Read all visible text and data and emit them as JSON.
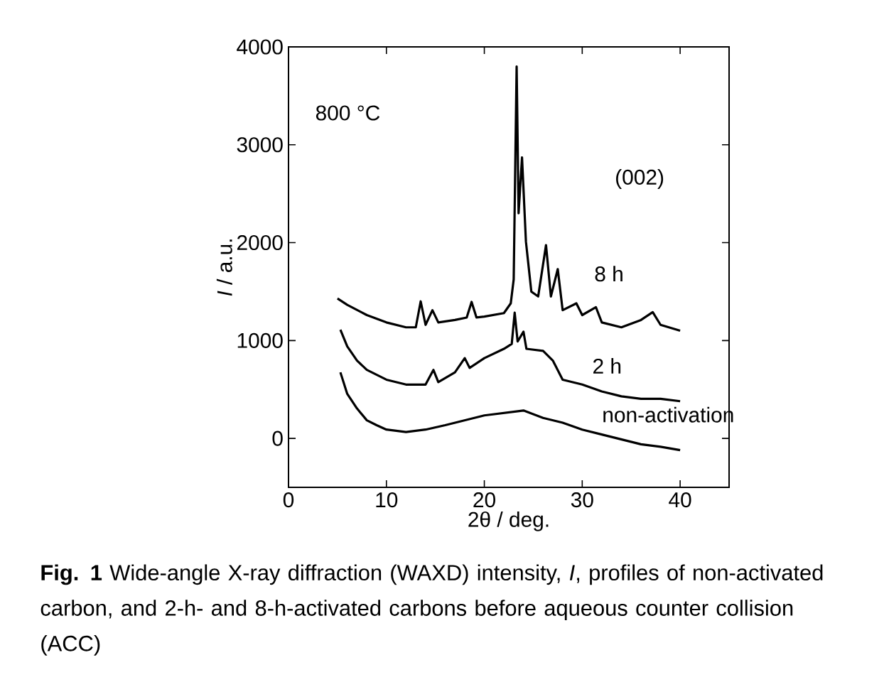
{
  "chart_data": {
    "type": "line",
    "xlabel": "2θ / deg.",
    "ylabel": "*I* / a.u.",
    "xlim": [
      0,
      45
    ],
    "ylim": [
      -500,
      4000
    ],
    "xticks": [
      0,
      10,
      20,
      30,
      40
    ],
    "yticks": [
      0,
      1000,
      2000,
      3000,
      4000
    ],
    "grid": false,
    "legend": false,
    "marker": "none",
    "line_style": "solid",
    "annotations": [
      "800 °C",
      "(002)",
      "**Fig. 1** Wide-angle X-ray diffraction (WAXD) intensity, *I*, profiles of non-activated carbon, and 2-h- and 8-h-activated carbons before aqueous counter collision (ACC)"
    ],
    "series": [
      {
        "name": "8 h",
        "color": "#000000",
        "x": [
          5,
          6,
          8,
          10,
          12,
          13,
          13.5,
          14,
          14.7,
          15.3,
          17,
          18.2,
          18.7,
          19.2,
          20,
          22,
          22.7,
          23,
          23.3,
          23.5,
          23.85,
          24.25,
          24.8,
          25.5,
          26.3,
          26.8,
          27.5,
          28,
          29.4,
          30,
          31.4,
          32,
          34,
          36,
          37.2,
          38,
          40
        ],
        "values": [
          1430,
          1365,
          1260,
          1185,
          1135,
          1135,
          1400,
          1160,
          1310,
          1185,
          1210,
          1235,
          1395,
          1235,
          1245,
          1280,
          1380,
          1625,
          3800,
          2300,
          2870,
          2010,
          1500,
          1450,
          1975,
          1450,
          1730,
          1310,
          1380,
          1260,
          1340,
          1185,
          1135,
          1210,
          1290,
          1160,
          1100
        ]
      },
      {
        "name": "2 h",
        "color": "#000000",
        "x": [
          5.3,
          6,
          7,
          8,
          10,
          12,
          14,
          14.8,
          15.3,
          17,
          18,
          18.5,
          20,
          22,
          22.8,
          23.1,
          23.4,
          24,
          24.3,
          26,
          27,
          28,
          30,
          32,
          34,
          36,
          38,
          40
        ],
        "values": [
          1110,
          940,
          795,
          700,
          600,
          550,
          550,
          700,
          575,
          675,
          820,
          720,
          820,
          915,
          965,
          1285,
          990,
          1090,
          915,
          895,
          795,
          600,
          550,
          480,
          430,
          405,
          405,
          380
        ]
      },
      {
        "name": "non-activation",
        "color": "#000000",
        "x": [
          5.3,
          6,
          7,
          8,
          9,
          10,
          12,
          14,
          16,
          18,
          20,
          22,
          24,
          26,
          28,
          30,
          32,
          34,
          36,
          38,
          40
        ],
        "values": [
          675,
          455,
          305,
          185,
          135,
          90,
          65,
          90,
          135,
          185,
          235,
          260,
          285,
          210,
          160,
          90,
          40,
          -10,
          -60,
          -85,
          -120
        ]
      }
    ]
  }
}
